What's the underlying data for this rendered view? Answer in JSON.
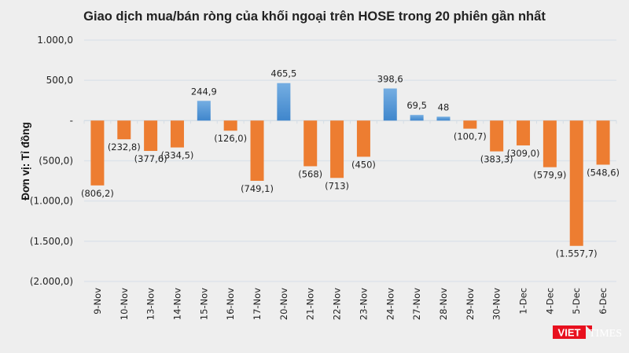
{
  "chart_data": {
    "type": "bar",
    "title": "Giao dịch mua/bán ròng của khối ngoại trên HOSE trong 20 phiên gần nhất",
    "ylabel": "Đơn vị: Tỉ đồng",
    "xlabel": "",
    "ylim": [
      -2000,
      1000
    ],
    "yticks": [
      1000,
      500,
      0,
      -500,
      -1000,
      -1500,
      -2000
    ],
    "ytick_labels": [
      "1.000,0",
      "500,0",
      "-",
      "(500,0)",
      "(1.000,0)",
      "(1.500,0)",
      "(2.000,0)"
    ],
    "grid": true,
    "categories": [
      "9-Nov",
      "10-Nov",
      "13-Nov",
      "14-Nov",
      "15-Nov",
      "16-Nov",
      "17-Nov",
      "20-Nov",
      "21-Nov",
      "22-Nov",
      "23-Nov",
      "24-Nov",
      "27-Nov",
      "28-Nov",
      "29-Nov",
      "30-Nov",
      "1-Dec",
      "4-Dec",
      "5-Dec",
      "6-Dec"
    ],
    "values": [
      -806.2,
      -232.8,
      -377.6,
      -334.5,
      244.9,
      -126.0,
      -749.1,
      465.5,
      -568,
      -713,
      -450,
      398.6,
      69.5,
      48,
      -100.7,
      -383.3,
      -309.0,
      -579.9,
      -1557.7,
      -548.6
    ],
    "data_labels": [
      "(806,2)",
      "(232,8)",
      "(377,6)",
      "(334,5)",
      "244,9",
      "(126,0)",
      "(749,1)",
      "465,5",
      "(568)",
      "(713)",
      "(450)",
      "398,6",
      "69,5",
      "48",
      "(100,7)",
      "(383,3)",
      "(309,0)",
      "(579,9)",
      "(1.557,7)",
      "(548,6)"
    ],
    "colors": {
      "positive": "#5b9bd5",
      "negative": "#ed7d31",
      "background": "#eeeeee",
      "grid": "#dde3ea"
    }
  },
  "logo": {
    "text": "VIETTIMES",
    "color": "#e8101e"
  }
}
